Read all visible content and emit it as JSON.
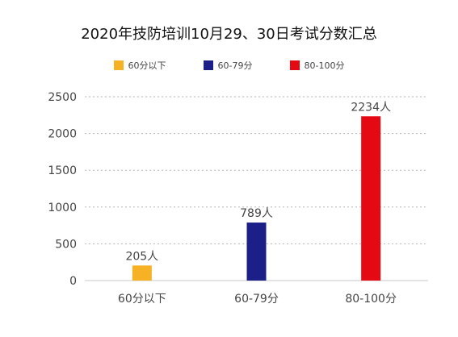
{
  "chart_data": {
    "type": "bar",
    "title": "2020年技防培训10月29、30日考试分数汇总",
    "categories": [
      "60分以下",
      "60-79分",
      "80-100分"
    ],
    "values": [
      205,
      789,
      2234
    ],
    "data_labels": [
      "205人",
      "789人",
      "2234人"
    ],
    "colors": [
      "#F7B125",
      "#1C1F87",
      "#E50914"
    ],
    "legend": [
      "60分以下",
      "60-79分",
      "80-100分"
    ],
    "legend_position": "top",
    "ylim": [
      0,
      2500
    ],
    "yticks": [
      "0",
      "500",
      "1000",
      "1500",
      "2000",
      "2500"
    ],
    "grid": true
  }
}
